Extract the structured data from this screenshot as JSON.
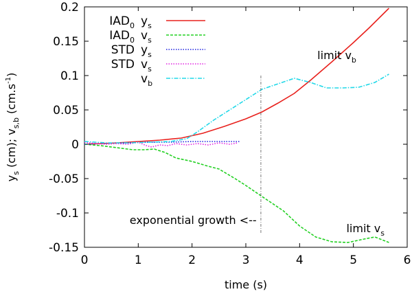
{
  "chart_data": {
    "type": "line",
    "xlabel": "time (s)",
    "ylabel": {
      "parts": [
        {
          "t": "y",
          "s": ""
        },
        {
          "t": "s",
          "s": "sub"
        },
        {
          "t": " (cm);  v",
          "s": ""
        },
        {
          "t": "s,b",
          "s": "sub"
        },
        {
          "t": " (cm.s",
          "s": ""
        },
        {
          "t": "-1",
          "s": "sup"
        },
        {
          "t": ")",
          "s": ""
        }
      ]
    },
    "xlim": [
      0,
      6
    ],
    "ylim": [
      -0.15,
      0.2
    ],
    "xticks": [
      0,
      1,
      2,
      3,
      4,
      5,
      6
    ],
    "xtick_labels": [
      "0",
      "1",
      "2",
      "3",
      "4",
      "5",
      "6"
    ],
    "yticks": [
      -0.15,
      -0.1,
      -0.05,
      0,
      0.05,
      0.1,
      0.15,
      0.2
    ],
    "ytick_labels": [
      "-0.15",
      "-0.1",
      "-0.05",
      "0",
      "0.05",
      "0.1",
      "0.15",
      "0.2"
    ],
    "grid": false,
    "legend_position": "top-left",
    "series": [
      {
        "name": "IAD0 ys",
        "label": {
          "main": "IAD",
          "main_sub": "0",
          "var": "y",
          "var_sub": "s"
        },
        "color": "#e8201c",
        "dash": "",
        "width": 1.6,
        "x": [
          0,
          0.3,
          0.6,
          1.0,
          1.4,
          1.8,
          2.2,
          2.6,
          3.0,
          3.3,
          3.6,
          3.9,
          4.2,
          4.6,
          5.0,
          5.3,
          5.66
        ],
        "y": [
          0,
          0.001,
          0.002,
          0.004,
          0.006,
          0.009,
          0.016,
          0.026,
          0.037,
          0.047,
          0.06,
          0.074,
          0.093,
          0.12,
          0.148,
          0.17,
          0.198
        ]
      },
      {
        "name": "IAD0 vs",
        "label": {
          "main": "IAD",
          "main_sub": "0",
          "var": "v",
          "var_sub": "s"
        },
        "color": "#22d022",
        "dash": "4 2",
        "width": 1.6,
        "x": [
          0,
          0.3,
          0.6,
          0.9,
          1.1,
          1.3,
          1.5,
          1.7,
          2.0,
          2.3,
          2.5,
          2.8,
          3.0,
          3.3,
          3.7,
          4.0,
          4.3,
          4.6,
          4.9,
          5.2,
          5.4,
          5.66
        ],
        "y": [
          0,
          -0.002,
          -0.005,
          -0.008,
          -0.008,
          -0.007,
          -0.012,
          -0.02,
          -0.025,
          -0.032,
          -0.036,
          -0.05,
          -0.06,
          -0.076,
          -0.097,
          -0.119,
          -0.135,
          -0.142,
          -0.143,
          -0.138,
          -0.135,
          -0.143
        ]
      },
      {
        "name": "STD ys",
        "label": {
          "main": "STD",
          "main_sub": "",
          "var": "y",
          "var_sub": "s"
        },
        "color": "#1c20e0",
        "dash": "1.5 2",
        "width": 1.6,
        "x": [
          0,
          0.4,
          0.8,
          1.2,
          1.6,
          2.0,
          2.4,
          2.8,
          2.9
        ],
        "y": [
          0,
          0.001,
          0.002,
          0.003,
          0.003,
          0.004,
          0.004,
          0.004,
          0.004
        ]
      },
      {
        "name": "STD vs",
        "label": {
          "main": "STD",
          "main_sub": "",
          "var": "v",
          "var_sub": "s"
        },
        "color": "#e020e0",
        "dash": "1.5 2",
        "width": 1.6,
        "x": [
          0,
          0.2,
          0.4,
          0.6,
          0.8,
          1.0,
          1.15,
          1.25,
          1.4,
          1.55,
          1.7,
          1.9,
          2.1,
          2.3,
          2.5,
          2.7,
          2.85
        ],
        "y": [
          0.003,
          0.001,
          0.0,
          0.001,
          0.0,
          0.003,
          -0.002,
          -0.004,
          -0.001,
          -0.002,
          0.001,
          -0.001,
          0.001,
          -0.001,
          0.002,
          0.0,
          0.002
        ]
      },
      {
        "name": "vb",
        "label": {
          "main": "",
          "main_sub": "",
          "var": "v",
          "var_sub": "b"
        },
        "color": "#20d8e8",
        "dash": "6 2 1.5 2",
        "width": 1.6,
        "x": [
          0,
          0.4,
          0.8,
          1.2,
          1.6,
          1.9,
          2.1,
          2.4,
          2.7,
          3.0,
          3.3,
          3.6,
          3.9,
          4.2,
          4.5,
          4.8,
          5.1,
          5.4,
          5.66
        ],
        "y": [
          0.004,
          0.002,
          0.002,
          0.003,
          0.004,
          0.008,
          0.018,
          0.035,
          0.05,
          0.065,
          0.08,
          0.088,
          0.096,
          0.09,
          0.082,
          0.082,
          0.083,
          0.09,
          0.102
        ]
      }
    ],
    "vline": {
      "x": 3.28,
      "y0": -0.13,
      "y1": 0.1,
      "color": "#555555"
    },
    "annotations": [
      {
        "id": "exp",
        "x": 3.2,
        "y": -0.116,
        "anchor": "end",
        "main": "exponential growth <--",
        "sub": ""
      },
      {
        "id": "limvb",
        "x": 4.33,
        "y": 0.124,
        "anchor": "start",
        "main": "limit v",
        "sub": "b"
      },
      {
        "id": "limvs",
        "x": 4.87,
        "y": -0.128,
        "anchor": "start",
        "main": "limit v",
        "sub": "s"
      }
    ]
  }
}
